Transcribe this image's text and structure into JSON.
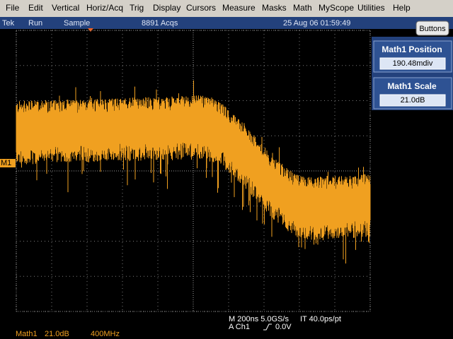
{
  "menu": [
    "File",
    "Edit",
    "Vertical",
    "Horiz/Acq",
    "Trig",
    "Display",
    "Cursors",
    "Measure",
    "Masks",
    "Math",
    "MyScope",
    "Utilities",
    "Help"
  ],
  "status": {
    "brand": "Tek",
    "state": "Run",
    "mode": "Sample",
    "acqs": "8891 Acqs",
    "datetime": "25 Aug 06 01:59:49",
    "button": "Buttons"
  },
  "panel": [
    {
      "title": "Math1 Position",
      "value": "190.48mdiv"
    },
    {
      "title": "Math1 Scale",
      "value": "21.0dB"
    }
  ],
  "marker": "M1",
  "readout": {
    "timebase": "M 200ns 5.0GS/s",
    "interp": "IT 40.0ps/pt",
    "trigger_source": "A  Ch1",
    "trigger_level": "0.0V"
  },
  "channel": {
    "name": "Math1",
    "scale": "21.0dB",
    "bandwidth": "400MHz"
  }
}
